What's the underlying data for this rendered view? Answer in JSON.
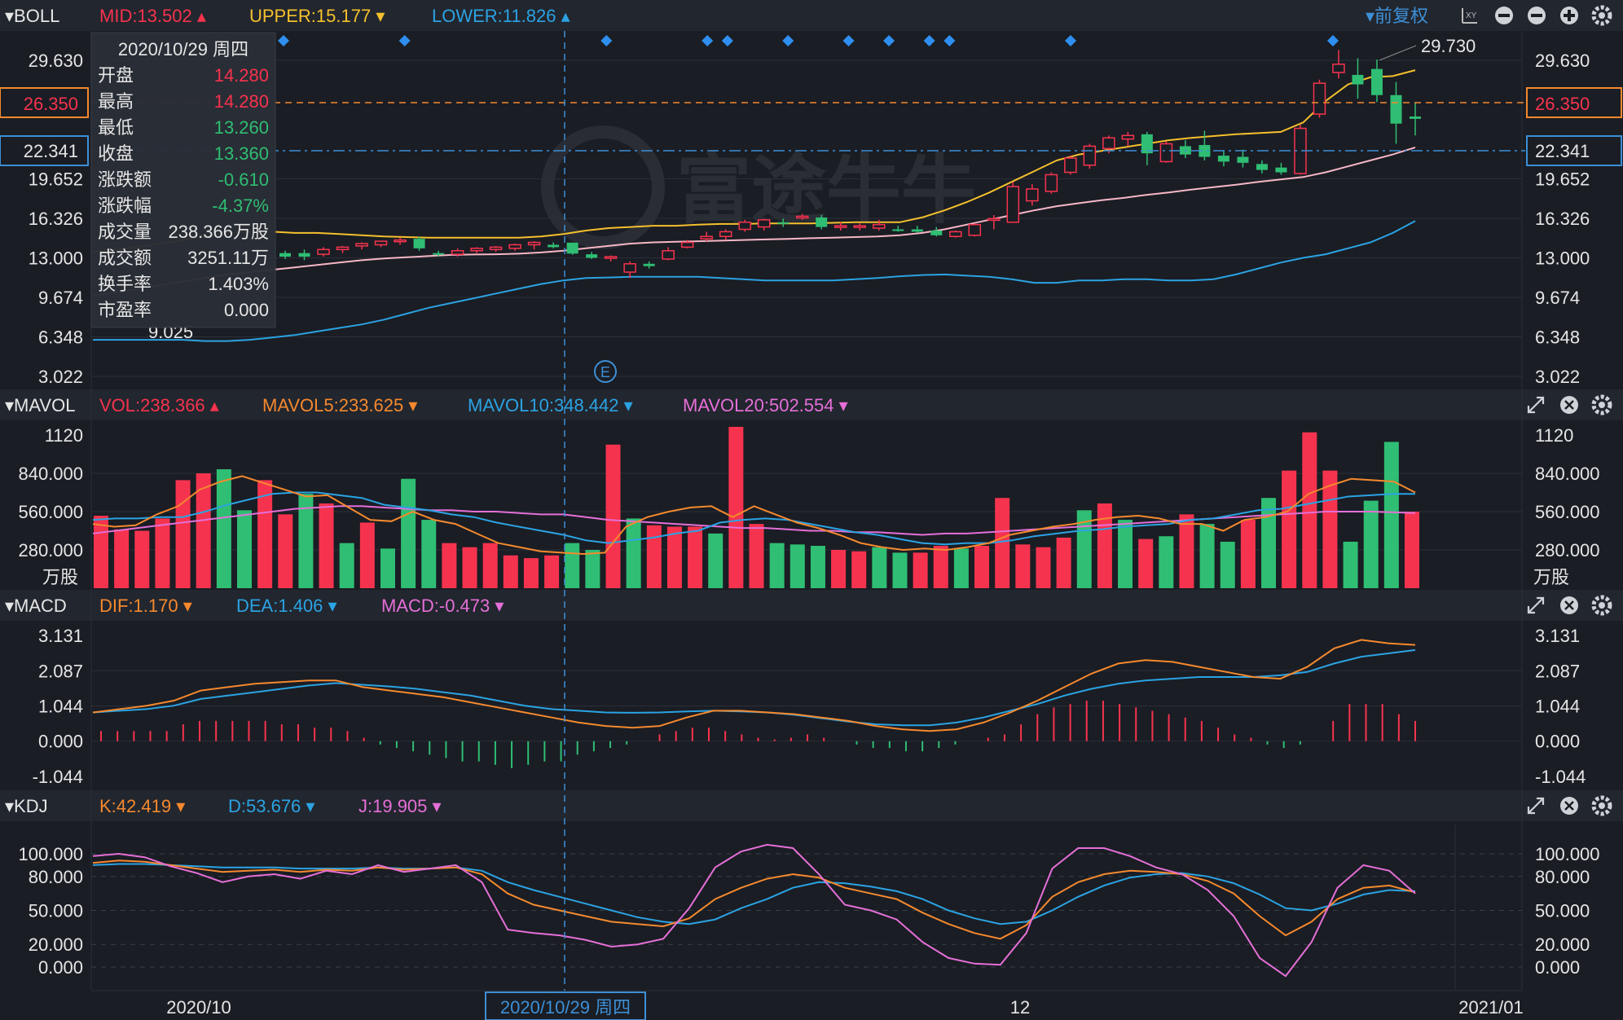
{
  "panels": {
    "boll": {
      "name": "BOLL",
      "mid": "MID:13.502",
      "upper": "UPPER:15.177",
      "lower": "LOWER:11.826",
      "right_controls": "前复权",
      "ticks": [
        "29.630",
        "26.350",
        "22.341",
        "19.652",
        "16.326",
        "13.000",
        "9.674",
        "6.348",
        "3.022"
      ],
      "tick_values": [
        29.63,
        26.35,
        22.341,
        19.652,
        16.326,
        13.0,
        9.674,
        6.348,
        3.022
      ],
      "max_label": "29.730",
      "min_label": "9.025",
      "event_marker": "E"
    },
    "mavol": {
      "name": "MAVOL",
      "vol": "VOL:238.366",
      "mavol5": "MAVOL5:233.625",
      "mavol10": "MAVOL10:348.442",
      "mavol20": "MAVOL20:502.554",
      "ticks": [
        "1120",
        "840.000",
        "560.000",
        "280.000"
      ],
      "tick_values": [
        1120,
        840,
        560,
        280
      ],
      "unit": "万股"
    },
    "macd": {
      "name": "MACD",
      "dif": "DIF:1.170",
      "dea": "DEA:1.406",
      "macd": "MACD:-0.473",
      "ticks": [
        "3.131",
        "2.087",
        "1.044",
        "0.000",
        "-1.044"
      ],
      "tick_values": [
        3.131,
        2.087,
        1.044,
        0.0,
        -1.044
      ]
    },
    "kdj": {
      "name": "KDJ",
      "k": "K:42.419",
      "d": "D:53.676",
      "j": "J:19.905",
      "ticks": [
        "100.000",
        "80.000",
        "50.000",
        "20.000",
        "0.000"
      ],
      "tick_values": [
        100,
        80,
        50,
        20,
        0
      ]
    }
  },
  "x_axis": {
    "labels": [
      "2020/10",
      "12",
      "2021/01"
    ],
    "crosshair_label": "2020/10/29 周四"
  },
  "tooltip": {
    "date": "2020/10/29 周四",
    "rows": [
      {
        "label": "开盘",
        "value": "14.280"
      },
      {
        "label": "最高",
        "value": "14.280"
      },
      {
        "label": "最低",
        "value": "13.260"
      },
      {
        "label": "收盘",
        "value": "13.360"
      },
      {
        "label": "涨跌额",
        "value": "-0.610"
      },
      {
        "label": "涨跌幅",
        "value": "-4.37%"
      },
      {
        "label": "成交量",
        "value": "238.366万股"
      },
      {
        "label": "成交额",
        "value": "3251.11万"
      },
      {
        "label": "换手率",
        "value": "1.403%"
      },
      {
        "label": "市盈率",
        "value": "0.000"
      }
    ]
  },
  "colors": {
    "bg": "#1a1d24",
    "up": "#f6334e",
    "down": "#2fbe73",
    "mid": "#f7b7c6",
    "upper": "#f5c02d",
    "lower": "#2ba3e3",
    "ma5": "#f5892e",
    "ma10": "#2ba3e3",
    "ma20": "#e56fd8",
    "grid": "#2b2f38",
    "axis_text": "#e6e6e6",
    "last_price": "#f5892e",
    "ref_price": "#3d8fd6"
  },
  "chart_data": {
    "type": "candlestick",
    "price_lines": {
      "last": 26.35,
      "reference": 22.341
    },
    "candles": [
      [
        13.4,
        13.6,
        12.9,
        13.1
      ],
      [
        13.4,
        13.7,
        12.8,
        13.1
      ],
      [
        13.3,
        13.9,
        13.1,
        13.7
      ],
      [
        13.7,
        14.0,
        13.4,
        13.9
      ],
      [
        14.0,
        14.3,
        13.7,
        14.2
      ],
      [
        14.1,
        14.4,
        13.9,
        14.4
      ],
      [
        14.4,
        14.7,
        14.1,
        14.5
      ],
      [
        14.6,
        14.8,
        13.6,
        13.8
      ],
      [
        13.4,
        13.6,
        13.1,
        13.3
      ],
      [
        13.3,
        13.8,
        13.1,
        13.6
      ],
      [
        13.6,
        13.9,
        13.4,
        13.8
      ],
      [
        13.7,
        14.0,
        13.5,
        13.9
      ],
      [
        13.8,
        14.2,
        13.6,
        14.1
      ],
      [
        14.1,
        14.4,
        13.7,
        14.3
      ],
      [
        14.1,
        14.3,
        13.8,
        13.9
      ],
      [
        14.28,
        14.28,
        13.26,
        13.36
      ],
      [
        13.3,
        13.5,
        12.9,
        13.0
      ],
      [
        13.0,
        13.2,
        12.7,
        13.1
      ],
      [
        11.8,
        12.7,
        11.3,
        12.5
      ],
      [
        12.5,
        12.7,
        12.1,
        12.3
      ],
      [
        12.9,
        13.9,
        12.8,
        13.6
      ],
      [
        13.9,
        14.5,
        13.8,
        14.3
      ],
      [
        14.6,
        15.2,
        14.4,
        14.8
      ],
      [
        14.8,
        15.4,
        14.5,
        15.2
      ],
      [
        15.4,
        16.2,
        15.2,
        16.0
      ],
      [
        15.6,
        16.3,
        15.3,
        16.2
      ],
      [
        16.0,
        16.3,
        15.6,
        15.9
      ],
      [
        16.4,
        16.7,
        16.2,
        16.5
      ],
      [
        16.4,
        16.6,
        15.4,
        15.6
      ],
      [
        15.6,
        16.0,
        15.3,
        15.7
      ],
      [
        15.6,
        15.9,
        15.3,
        15.7
      ],
      [
        15.5,
        16.2,
        15.3,
        15.8
      ],
      [
        15.4,
        15.7,
        15.2,
        15.3
      ],
      [
        15.4,
        15.7,
        15.1,
        15.2
      ],
      [
        15.3,
        15.6,
        14.8,
        14.9
      ],
      [
        14.8,
        15.3,
        14.7,
        15.2
      ],
      [
        14.9,
        15.9,
        14.8,
        15.8
      ],
      [
        16.2,
        16.6,
        15.4,
        16.3
      ],
      [
        16.0,
        19.4,
        16.0,
        19.0
      ],
      [
        17.8,
        19.2,
        17.4,
        18.8
      ],
      [
        18.6,
        20.2,
        18.4,
        20.0
      ],
      [
        20.2,
        21.6,
        20.0,
        21.4
      ],
      [
        20.8,
        22.6,
        20.5,
        22.4
      ],
      [
        22.2,
        23.3,
        21.8,
        23.1
      ],
      [
        23.0,
        23.6,
        22.4,
        23.3
      ],
      [
        23.4,
        23.6,
        20.8,
        21.8
      ],
      [
        21.1,
        22.8,
        21.0,
        22.6
      ],
      [
        22.4,
        22.9,
        21.4,
        21.7
      ],
      [
        22.5,
        23.7,
        21.2,
        21.5
      ],
      [
        21.6,
        22.0,
        20.7,
        21.1
      ],
      [
        21.5,
        22.1,
        20.6,
        21.0
      ],
      [
        20.9,
        21.2,
        20.1,
        20.4
      ],
      [
        20.6,
        21.0,
        20.0,
        20.2
      ],
      [
        20.1,
        24.2,
        20.0,
        23.9
      ],
      [
        25.1,
        28.0,
        24.8,
        27.7
      ],
      [
        28.6,
        30.5,
        28.1,
        29.3
      ],
      [
        28.4,
        29.8,
        26.4,
        27.6
      ],
      [
        28.9,
        29.7,
        26.1,
        26.7
      ],
      [
        26.7,
        27.8,
        22.6,
        24.3
      ],
      [
        24.9,
        26.1,
        23.3,
        24.7
      ]
    ],
    "boll_mid": [
      9.8,
      10.1,
      10.4,
      10.7,
      11.0,
      11.3,
      11.6,
      11.8,
      12.0,
      12.2,
      12.4,
      12.6,
      12.8,
      12.95,
      13.05,
      13.15,
      13.25,
      13.28,
      13.3,
      13.35,
      13.45,
      13.6,
      13.8,
      14.0,
      14.2,
      14.3,
      14.35,
      14.4,
      14.45,
      14.5,
      14.55,
      14.6,
      14.65,
      14.7,
      14.75,
      14.8,
      14.9,
      15.1,
      15.4,
      15.8,
      16.2,
      16.6,
      17.0,
      17.35,
      17.6,
      17.85,
      18.05,
      18.3,
      18.5,
      18.75,
      18.95,
      19.15,
      19.4,
      19.6,
      19.8,
      20.2,
      20.7,
      21.2,
      21.7,
      22.3
    ],
    "boll_upper": [
      13.5,
      13.7,
      13.9,
      14.2,
      14.5,
      14.8,
      15.1,
      15.2,
      15.2,
      15.1,
      15.1,
      15.0,
      14.9,
      14.8,
      14.75,
      14.7,
      14.7,
      14.7,
      14.7,
      14.7,
      14.8,
      15.0,
      15.3,
      15.5,
      15.6,
      15.7,
      15.7,
      15.8,
      15.85,
      15.85,
      15.9,
      15.9,
      15.9,
      15.95,
      16.0,
      16.0,
      16.0,
      16.4,
      17.0,
      17.7,
      18.5,
      19.4,
      20.3,
      21.2,
      21.7,
      22.0,
      22.3,
      22.6,
      22.9,
      23.1,
      23.25,
      23.4,
      23.5,
      23.6,
      24.4,
      26.2,
      27.6,
      28.2,
      28.3,
      28.8
    ],
    "boll_lower": [
      6.1,
      6.1,
      6.1,
      6.1,
      6.1,
      6.0,
      6.0,
      6.1,
      6.3,
      6.5,
      6.8,
      7.1,
      7.4,
      7.8,
      8.3,
      8.8,
      9.2,
      9.6,
      10.0,
      10.4,
      10.8,
      11.1,
      11.3,
      11.35,
      11.4,
      11.4,
      11.4,
      11.4,
      11.3,
      11.2,
      11.1,
      11.1,
      11.1,
      11.1,
      11.2,
      11.3,
      11.45,
      11.55,
      11.6,
      11.5,
      11.4,
      11.2,
      10.9,
      10.9,
      11.1,
      11.1,
      11.2,
      11.2,
      11.1,
      11.1,
      11.2,
      11.6,
      12.1,
      12.6,
      13.0,
      13.3,
      13.8,
      14.3,
      15.1,
      16.1
    ],
    "signal_markers": [
      9,
      15,
      25,
      30,
      31,
      34,
      37,
      39,
      41,
      42,
      48,
      61
    ],
    "volumes": [
      530,
      430,
      420,
      510,
      790,
      840,
      870,
      570,
      790,
      540,
      690,
      620,
      330,
      480,
      290,
      800,
      500,
      330,
      300,
      330,
      240,
      220,
      240,
      330,
      280,
      1050,
      510,
      460,
      450,
      450,
      400,
      1180,
      470,
      330,
      320,
      310,
      280,
      270,
      300,
      260,
      260,
      310,
      290,
      310,
      660,
      320,
      300,
      370,
      570,
      620,
      500,
      360,
      380,
      540,
      470,
      340,
      500,
      660,
      860,
      1140,
      860,
      340,
      640,
      1070,
      560
    ],
    "volume_dir": [
      1,
      1,
      1,
      1,
      1,
      1,
      0,
      0,
      1,
      1,
      0,
      1,
      0,
      1,
      0,
      0,
      0,
      1,
      1,
      1,
      1,
      1,
      1,
      0,
      0,
      1,
      0,
      1,
      1,
      1,
      0,
      1,
      1,
      0,
      0,
      0,
      1,
      1,
      0,
      0,
      1,
      1,
      0,
      1,
      1,
      1,
      1,
      1,
      0,
      1,
      0,
      1,
      0,
      1,
      0,
      0,
      1,
      0,
      1,
      1,
      1,
      0,
      0,
      0,
      1
    ],
    "mavol5": [
      470,
      450,
      460,
      540,
      600,
      720,
      780,
      820,
      770,
      720,
      670,
      680,
      590,
      500,
      490,
      560,
      500,
      470,
      400,
      330,
      300,
      270,
      260,
      250,
      260,
      450,
      520,
      560,
      590,
      600,
      520,
      600,
      540,
      480,
      440,
      390,
      330,
      300,
      280,
      290,
      280,
      300,
      330,
      390,
      420,
      450,
      470,
      500,
      520,
      530,
      510,
      470,
      470,
      420,
      500,
      520,
      560,
      690,
      750,
      800,
      790,
      780,
      700
    ],
    "mavol10": [
      500,
      510,
      510,
      520,
      520,
      560,
      610,
      650,
      690,
      700,
      700,
      680,
      660,
      610,
      590,
      570,
      540,
      520,
      480,
      450,
      420,
      390,
      350,
      330,
      350,
      370,
      400,
      420,
      480,
      500,
      510,
      500,
      470,
      440,
      410,
      390,
      360,
      330,
      320,
      330,
      330,
      350,
      380,
      400,
      420,
      430,
      450,
      460,
      470,
      500,
      510,
      540,
      570,
      580,
      610,
      640,
      670,
      680,
      690,
      690
    ],
    "mavol20": [
      400,
      420,
      440,
      460,
      480,
      500,
      520,
      540,
      560,
      580,
      590,
      600,
      600,
      590,
      580,
      570,
      570,
      560,
      560,
      550,
      540,
      540,
      520,
      500,
      490,
      480,
      470,
      460,
      450,
      440,
      440,
      430,
      420,
      420,
      410,
      410,
      400,
      390,
      400,
      400,
      410,
      420,
      430,
      440,
      450,
      460,
      470,
      480,
      490,
      500,
      510,
      520,
      530,
      540,
      550,
      560,
      560,
      560,
      555,
      550
    ],
    "dif": [
      0.85,
      0.95,
      1.05,
      1.2,
      1.5,
      1.6,
      1.7,
      1.75,
      1.8,
      1.8,
      1.6,
      1.5,
      1.4,
      1.3,
      1.15,
      1.0,
      0.85,
      0.7,
      0.55,
      0.45,
      0.4,
      0.45,
      0.7,
      0.9,
      0.9,
      0.85,
      0.8,
      0.7,
      0.6,
      0.45,
      0.35,
      0.3,
      0.35,
      0.55,
      0.85,
      1.2,
      1.6,
      2.0,
      2.3,
      2.4,
      2.35,
      2.2,
      2.05,
      1.9,
      1.85,
      2.2,
      2.75,
      3.0,
      2.9,
      2.85
    ],
    "dea": [
      0.85,
      0.9,
      0.95,
      1.05,
      1.25,
      1.35,
      1.45,
      1.55,
      1.65,
      1.72,
      1.67,
      1.62,
      1.55,
      1.45,
      1.35,
      1.2,
      1.05,
      0.95,
      0.9,
      0.85,
      0.84,
      0.85,
      0.88,
      0.9,
      0.88,
      0.85,
      0.78,
      0.68,
      0.58,
      0.5,
      0.47,
      0.47,
      0.55,
      0.7,
      0.9,
      1.1,
      1.35,
      1.55,
      1.7,
      1.8,
      1.85,
      1.9,
      1.9,
      1.9,
      1.95,
      2.05,
      2.3,
      2.5,
      2.6,
      2.7
    ],
    "macd_hist": [
      0.3,
      0.3,
      0.3,
      0.3,
      0.3,
      0.5,
      0.6,
      0.6,
      0.6,
      0.6,
      0.6,
      0.5,
      0.5,
      0.4,
      0.4,
      0.3,
      0.1,
      -0.1,
      -0.2,
      -0.3,
      -0.4,
      -0.5,
      -0.6,
      -0.6,
      -0.7,
      -0.8,
      -0.7,
      -0.6,
      -0.6,
      -0.4,
      -0.3,
      -0.2,
      -0.1,
      0.0,
      0.2,
      0.3,
      0.4,
      0.4,
      0.3,
      0.2,
      0.1,
      0.05,
      0.1,
      0.2,
      0.1,
      0.0,
      -0.1,
      -0.2,
      -0.2,
      -0.3,
      -0.3,
      -0.2,
      -0.1,
      0.0,
      0.1,
      0.2,
      0.5,
      0.8,
      1.0,
      1.1,
      1.2,
      1.2,
      1.1,
      1.0,
      0.9,
      0.8,
      0.7,
      0.6,
      0.4,
      0.2,
      0.1,
      -0.1,
      -0.2,
      -0.1,
      0.0,
      0.6,
      1.1,
      1.1,
      1.1,
      0.8,
      0.6
    ],
    "kdj_k": [
      92,
      94,
      93,
      90,
      87,
      84,
      85,
      86,
      84,
      86,
      85,
      88,
      86,
      87,
      88,
      82,
      65,
      55,
      50,
      45,
      40,
      38,
      36,
      43,
      60,
      70,
      78,
      82,
      79,
      70,
      65,
      60,
      48,
      38,
      30,
      25,
      37,
      62,
      75,
      82,
      85,
      84,
      82,
      76,
      65,
      45,
      28,
      40,
      60,
      70,
      72,
      66
    ],
    "kdj_d": [
      90,
      91,
      91,
      90,
      89,
      88,
      88,
      88,
      87,
      87,
      87,
      88,
      87,
      87,
      88,
      85,
      75,
      68,
      62,
      56,
      50,
      44,
      40,
      38,
      42,
      52,
      60,
      70,
      75,
      74,
      71,
      67,
      60,
      50,
      43,
      38,
      40,
      50,
      62,
      72,
      79,
      82,
      83,
      80,
      74,
      64,
      52,
      50,
      56,
      64,
      68,
      67
    ],
    "kdj_j": [
      98,
      100,
      97,
      89,
      83,
      75,
      80,
      82,
      78,
      85,
      82,
      90,
      84,
      87,
      90,
      75,
      33,
      30,
      28,
      24,
      18,
      20,
      25,
      52,
      88,
      102,
      108,
      105,
      82,
      55,
      50,
      42,
      22,
      8,
      3,
      2,
      30,
      87,
      105,
      105,
      98,
      88,
      82,
      68,
      45,
      8,
      -8,
      22,
      70,
      90,
      85,
      65
    ]
  }
}
